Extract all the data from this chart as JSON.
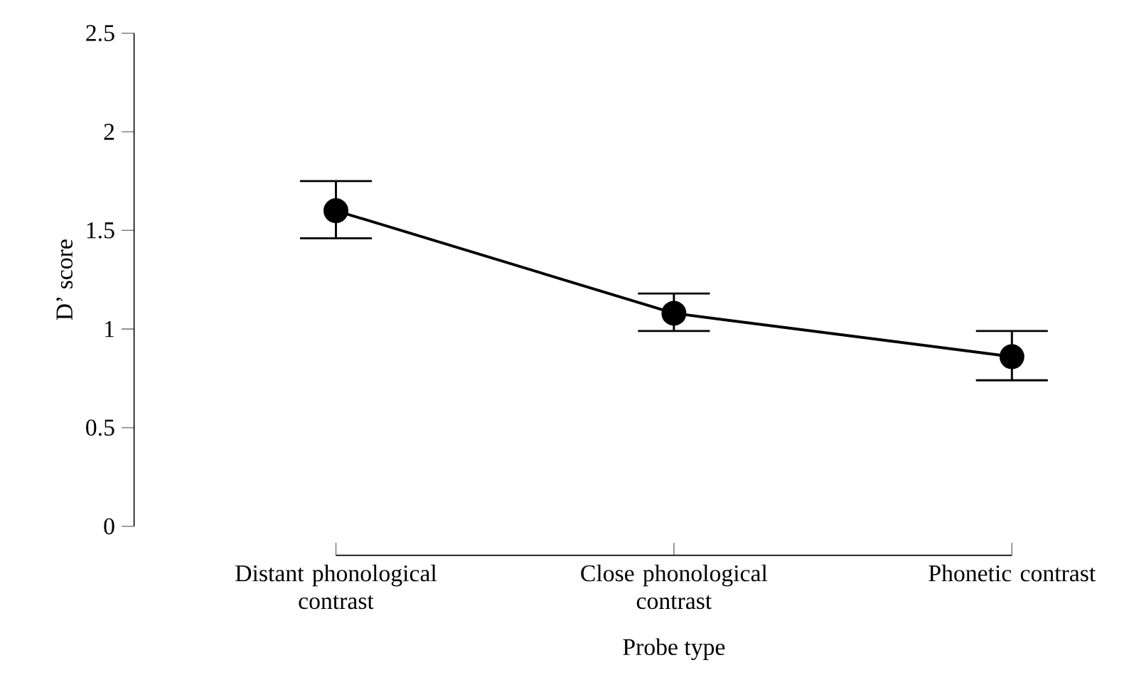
{
  "chart_data": {
    "type": "line",
    "xlabel": "Probe type",
    "ylabel": "D’ score",
    "categories": [
      "Distant phonological contrast",
      "Close phonological contrast",
      "Phonetic contrast"
    ],
    "series": [
      {
        "color": "#000000",
        "values": [
          1.6,
          1.08,
          0.86
        ],
        "errors": [
          [
            1.46,
            1.75
          ],
          [
            0.99,
            1.18
          ],
          [
            0.74,
            0.99
          ]
        ]
      }
    ],
    "ylim": [
      0,
      2.5
    ],
    "yticks": [
      0,
      0.5,
      1,
      1.5,
      2,
      2.5
    ],
    "marker": "circle",
    "line_style": "solid"
  }
}
